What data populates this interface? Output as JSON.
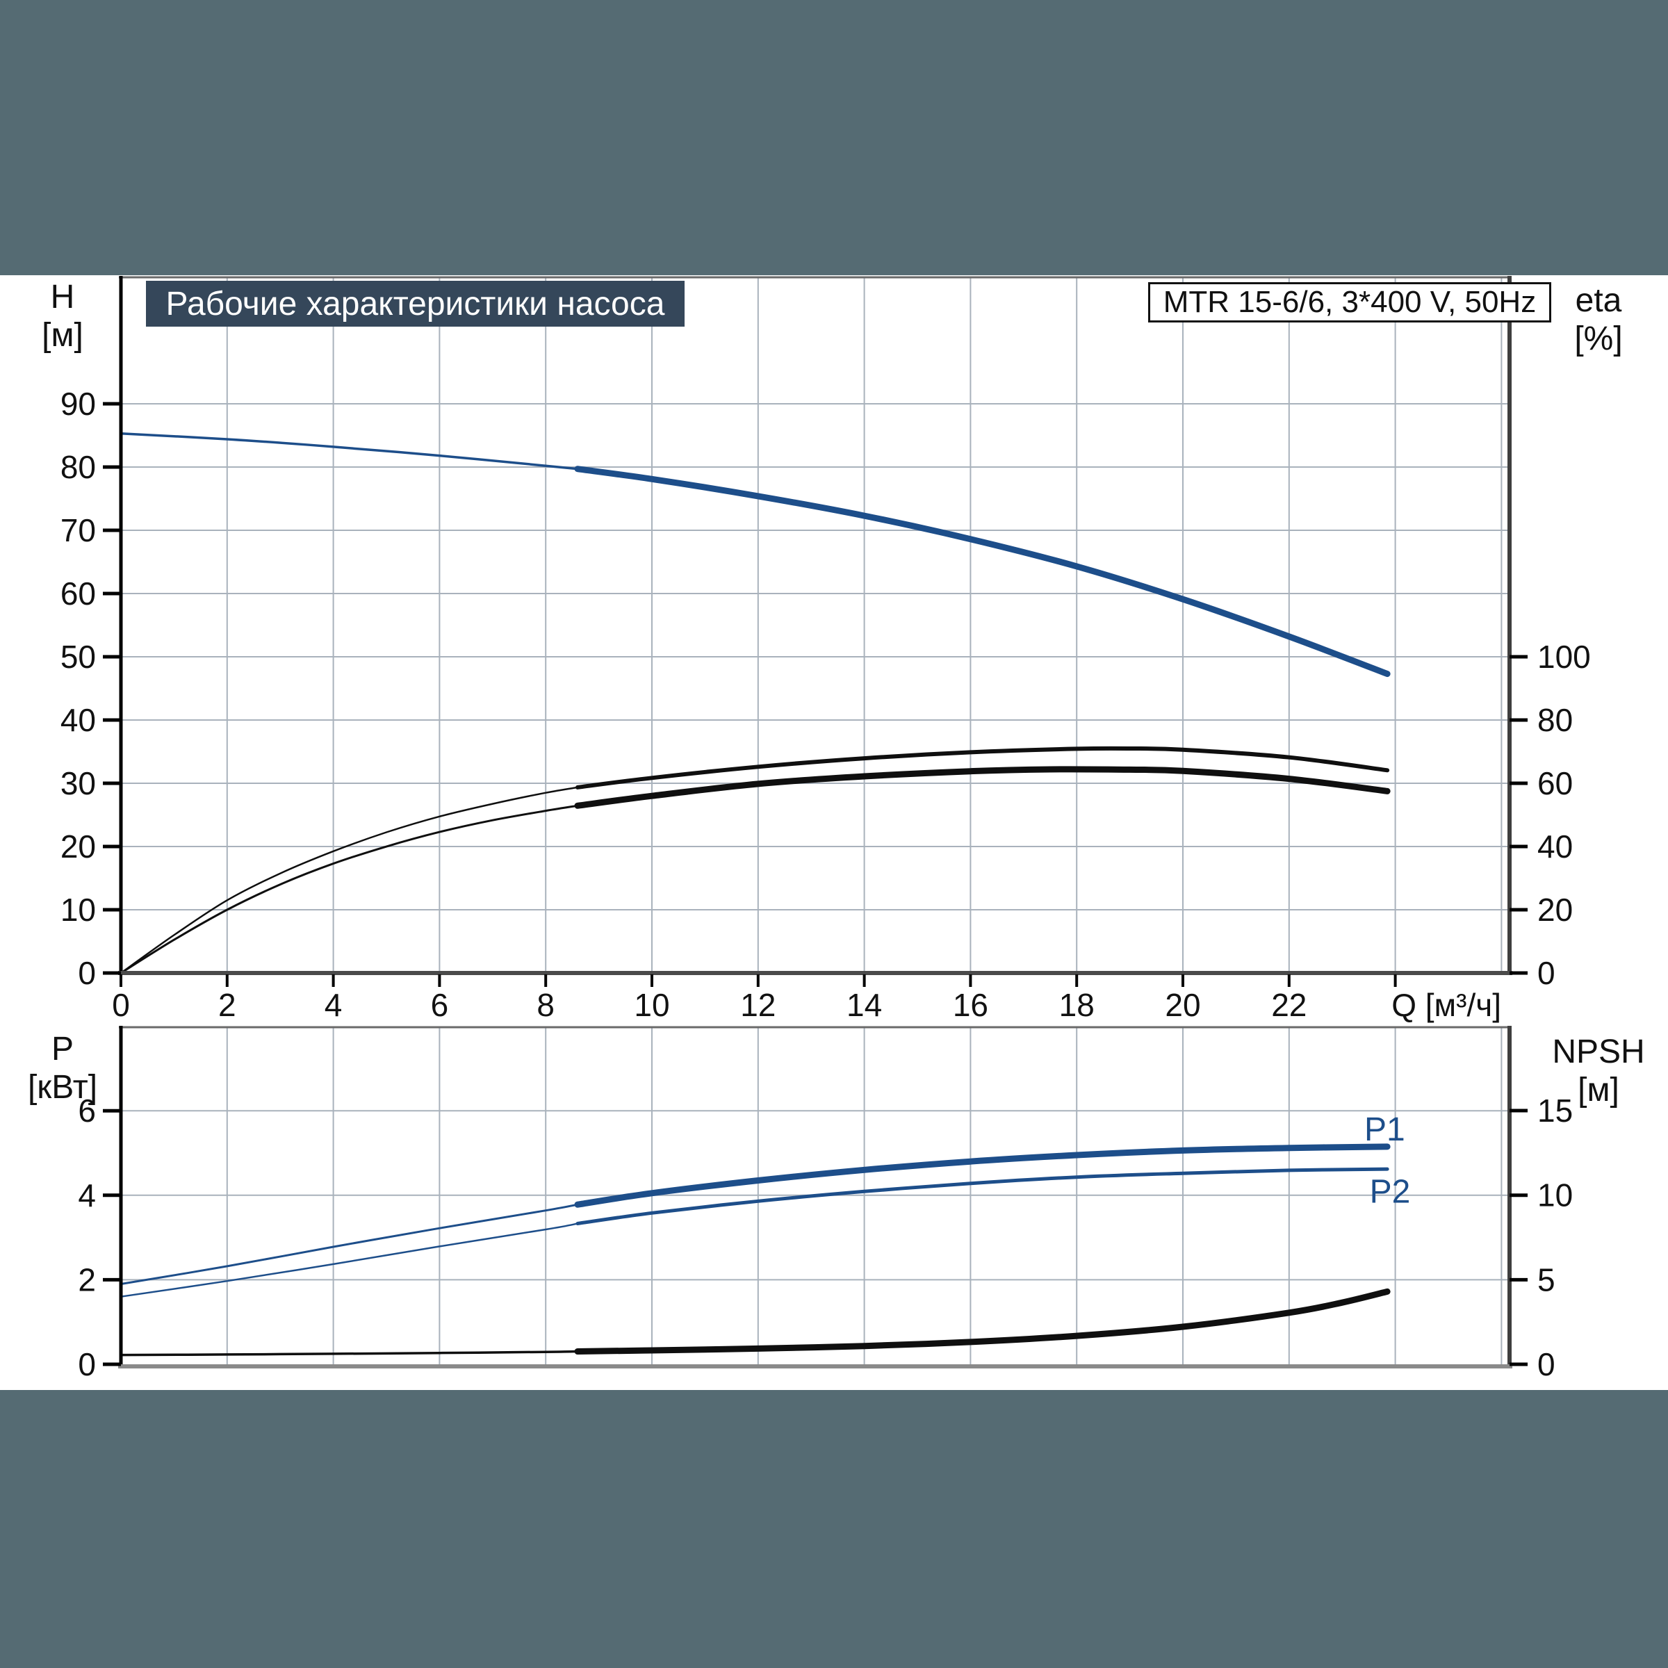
{
  "page": {
    "surround_color": "#556b73",
    "panel_color": "#ffffff",
    "grid_color": "#a9b2bc",
    "accent_blue": "#1d4e8a",
    "curve_black": "#0f0f0f"
  },
  "header": {
    "title": "Рабочие характеристики насоса",
    "title_bg": "#35475a",
    "model_label": "MTR 15-6/6, 3*400 V, 50Hz"
  },
  "chart_data": [
    {
      "type": "line",
      "name": "head-efficiency-chart",
      "x_axis": {
        "label": "Q [м³/ч]",
        "min": 0,
        "max": 26.15,
        "ticks": [
          0,
          2,
          4,
          6,
          8,
          10,
          12,
          14,
          16,
          18,
          20,
          22,
          24
        ],
        "tick_labels": [
          "0",
          "2",
          "4",
          "6",
          "8",
          "10",
          "12",
          "14",
          "16",
          "18",
          "20",
          "22",
          ""
        ],
        "grid": true
      },
      "y_left": {
        "label": "H [м]",
        "label_lines": [
          "H",
          "[м]"
        ],
        "min": 0,
        "max": 110,
        "ticks": [
          0,
          10,
          20,
          30,
          40,
          50,
          60,
          70,
          80,
          90
        ],
        "tick_labels": [
          "0",
          "10",
          "20",
          "30",
          "40",
          "50",
          "60",
          "70",
          "80",
          "90"
        ],
        "grid": true
      },
      "y_right": {
        "label": "eta [%]",
        "label_lines": [
          "eta",
          "[%]"
        ],
        "min": 0,
        "max": 220,
        "ticks": [
          0,
          20,
          40,
          60,
          80,
          100
        ],
        "tick_labels": [
          "0",
          "20",
          "40",
          "60",
          "80",
          "100"
        ]
      },
      "duty_range_start_q": 8.6,
      "series": [
        {
          "id": "H",
          "name": "H-Q curve",
          "axis": "left",
          "color": "#1d4e8a",
          "points": [
            [
              0,
              85.3
            ],
            [
              2,
              84.4
            ],
            [
              4,
              83.2
            ],
            [
              6,
              81.8
            ],
            [
              8,
              80.2
            ],
            [
              8.6,
              79.7
            ],
            [
              10,
              78.1
            ],
            [
              12,
              75.4
            ],
            [
              14,
              72.3
            ],
            [
              16,
              68.6
            ],
            [
              18,
              64.3
            ],
            [
              20,
              59.1
            ],
            [
              22,
              53.2
            ],
            [
              23.85,
              47.3
            ]
          ]
        },
        {
          "id": "eta_upper",
          "name": "eta pump",
          "axis": "right",
          "color": "#0f0f0f",
          "points": [
            [
              0,
              0
            ],
            [
              1,
              12
            ],
            [
              2,
              23
            ],
            [
              3,
              31.5
            ],
            [
              4,
              38.5
            ],
            [
              5,
              44.5
            ],
            [
              6,
              49.5
            ],
            [
              7,
              53.5
            ],
            [
              8,
              57
            ],
            [
              8.6,
              58.7
            ],
            [
              10,
              61.7
            ],
            [
              12,
              65.2
            ],
            [
              14,
              67.9
            ],
            [
              16,
              69.8
            ],
            [
              18,
              70.9
            ],
            [
              19,
              71
            ],
            [
              20,
              70.6
            ],
            [
              22,
              68.2
            ],
            [
              23.85,
              64.1
            ]
          ]
        },
        {
          "id": "eta_lower",
          "name": "eta pump+motor",
          "axis": "right",
          "color": "#0f0f0f",
          "points": [
            [
              0,
              0
            ],
            [
              1,
              10.5
            ],
            [
              2,
              20
            ],
            [
              3,
              28
            ],
            [
              4,
              34.6
            ],
            [
              5,
              40
            ],
            [
              6,
              44.6
            ],
            [
              7,
              48.3
            ],
            [
              8,
              51.3
            ],
            [
              8.6,
              52.9
            ],
            [
              10,
              56
            ],
            [
              12,
              59.8
            ],
            [
              14,
              62.2
            ],
            [
              16,
              63.8
            ],
            [
              17.5,
              64.4
            ],
            [
              19,
              64.3
            ],
            [
              20,
              63.9
            ],
            [
              22,
              61.4
            ],
            [
              23.85,
              57.5
            ]
          ]
        }
      ]
    },
    {
      "type": "line",
      "name": "power-npsh-chart",
      "x_axis": {
        "label": "",
        "min": 0,
        "max": 26.15,
        "ticks": [],
        "tick_labels": [],
        "grid": true
      },
      "y_left": {
        "label": "P [кВт]",
        "label_lines": [
          "P",
          "[кВт]"
        ],
        "min": 0,
        "max": 8,
        "ticks": [
          0,
          2,
          4,
          6
        ],
        "tick_labels": [
          "0",
          "2",
          "4",
          "6"
        ],
        "grid": true
      },
      "y_right": {
        "label": "NPSH [м]",
        "label_lines": [
          "NPSH",
          "[м]"
        ],
        "min": 0,
        "max": 20,
        "ticks": [
          0,
          5,
          10,
          15
        ],
        "tick_labels": [
          "0",
          "5",
          "10",
          "15"
        ]
      },
      "duty_range_start_q": 8.6,
      "series": [
        {
          "id": "P1",
          "name": "P1",
          "axis": "left",
          "color": "#1d4e8a",
          "points": [
            [
              0,
              1.9
            ],
            [
              2,
              2.32
            ],
            [
              4,
              2.78
            ],
            [
              6,
              3.22
            ],
            [
              8,
              3.64
            ],
            [
              8.6,
              3.78
            ],
            [
              10,
              4.05
            ],
            [
              12,
              4.35
            ],
            [
              14,
              4.6
            ],
            [
              16,
              4.8
            ],
            [
              18,
              4.95
            ],
            [
              20,
              5.06
            ],
            [
              22,
              5.12
            ],
            [
              23.85,
              5.15
            ]
          ]
        },
        {
          "id": "P2",
          "name": "P2",
          "axis": "left",
          "color": "#1d4e8a",
          "points": [
            [
              0,
              1.6
            ],
            [
              2,
              1.97
            ],
            [
              4,
              2.37
            ],
            [
              6,
              2.79
            ],
            [
              8,
              3.19
            ],
            [
              8.6,
              3.33
            ],
            [
              10,
              3.58
            ],
            [
              12,
              3.86
            ],
            [
              14,
              4.09
            ],
            [
              16,
              4.28
            ],
            [
              18,
              4.43
            ],
            [
              20,
              4.52
            ],
            [
              22,
              4.59
            ],
            [
              23.85,
              4.62
            ]
          ]
        },
        {
          "id": "NPSH",
          "name": "NPSH",
          "axis": "right",
          "color": "#0f0f0f",
          "points": [
            [
              0,
              0.55
            ],
            [
              2,
              0.58
            ],
            [
              4,
              0.62
            ],
            [
              6,
              0.67
            ],
            [
              8,
              0.73
            ],
            [
              8.6,
              0.76
            ],
            [
              10,
              0.82
            ],
            [
              12,
              0.93
            ],
            [
              14,
              1.08
            ],
            [
              16,
              1.32
            ],
            [
              18,
              1.68
            ],
            [
              20,
              2.22
            ],
            [
              22,
              3.05
            ],
            [
              23,
              3.65
            ],
            [
              23.85,
              4.3
            ]
          ]
        }
      ],
      "annotations": [
        {
          "text": "P1",
          "q": 23.8,
          "p": 5.3,
          "color": "#1d4e8a"
        },
        {
          "text": "P2",
          "q": 23.9,
          "p": 3.82,
          "color": "#1d4e8a"
        }
      ]
    }
  ]
}
